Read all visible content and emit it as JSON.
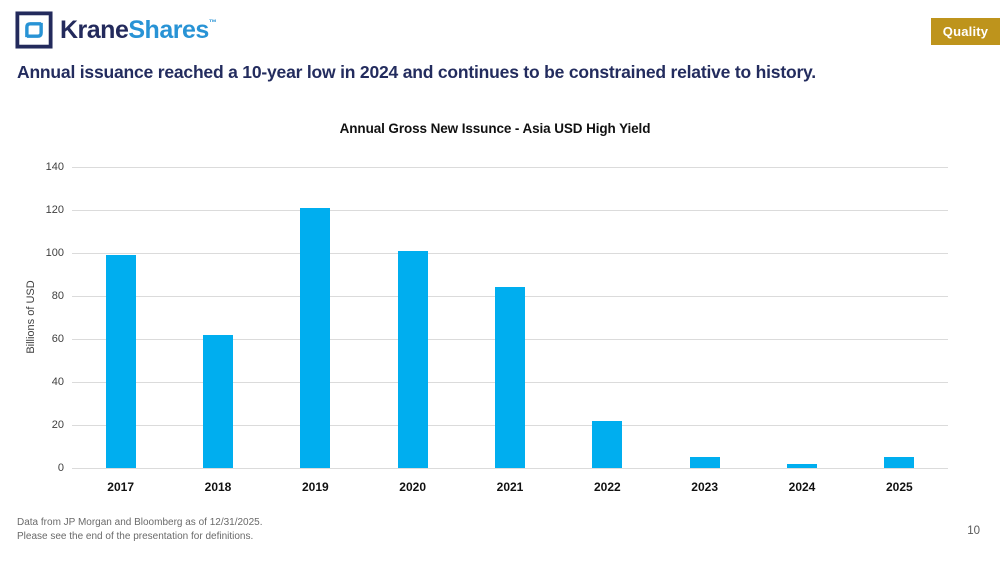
{
  "header": {
    "logo": {
      "brand_first": "Krane",
      "brand_second": "Shares",
      "trademark": "™",
      "icon": "kraneshares-square-bracket-logo",
      "navy_color": "#232A5C",
      "blue_color": "#2893D5"
    },
    "badge": {
      "label": "Quality",
      "background_color": "#BE941C",
      "text_color": "#FFFFFF"
    }
  },
  "headline": "Annual issuance reached a 10-year low in 2024 and continues to be constrained relative to history.",
  "chart_data": {
    "type": "bar",
    "title": "Annual Gross New Issunce - Asia USD High Yield",
    "categories": [
      "2017",
      "2018",
      "2019",
      "2020",
      "2021",
      "2022",
      "2023",
      "2024",
      "2025"
    ],
    "values": [
      99,
      62,
      121,
      101,
      84,
      22,
      5,
      2,
      5
    ],
    "xlabel": "",
    "ylabel": "Billions of USD",
    "ylim": [
      0,
      140
    ],
    "yticks": [
      0,
      20,
      40,
      60,
      80,
      100,
      120,
      140
    ],
    "bar_color": "#00AEEF",
    "gridline_color": "#DBDBDB",
    "grid": true,
    "legend": "none"
  },
  "footer": {
    "line1": "Data from JP Morgan and Bloomberg as of 12/31/2025.",
    "line2": "Please see the end of the presentation for definitions.",
    "page_number": "10"
  }
}
